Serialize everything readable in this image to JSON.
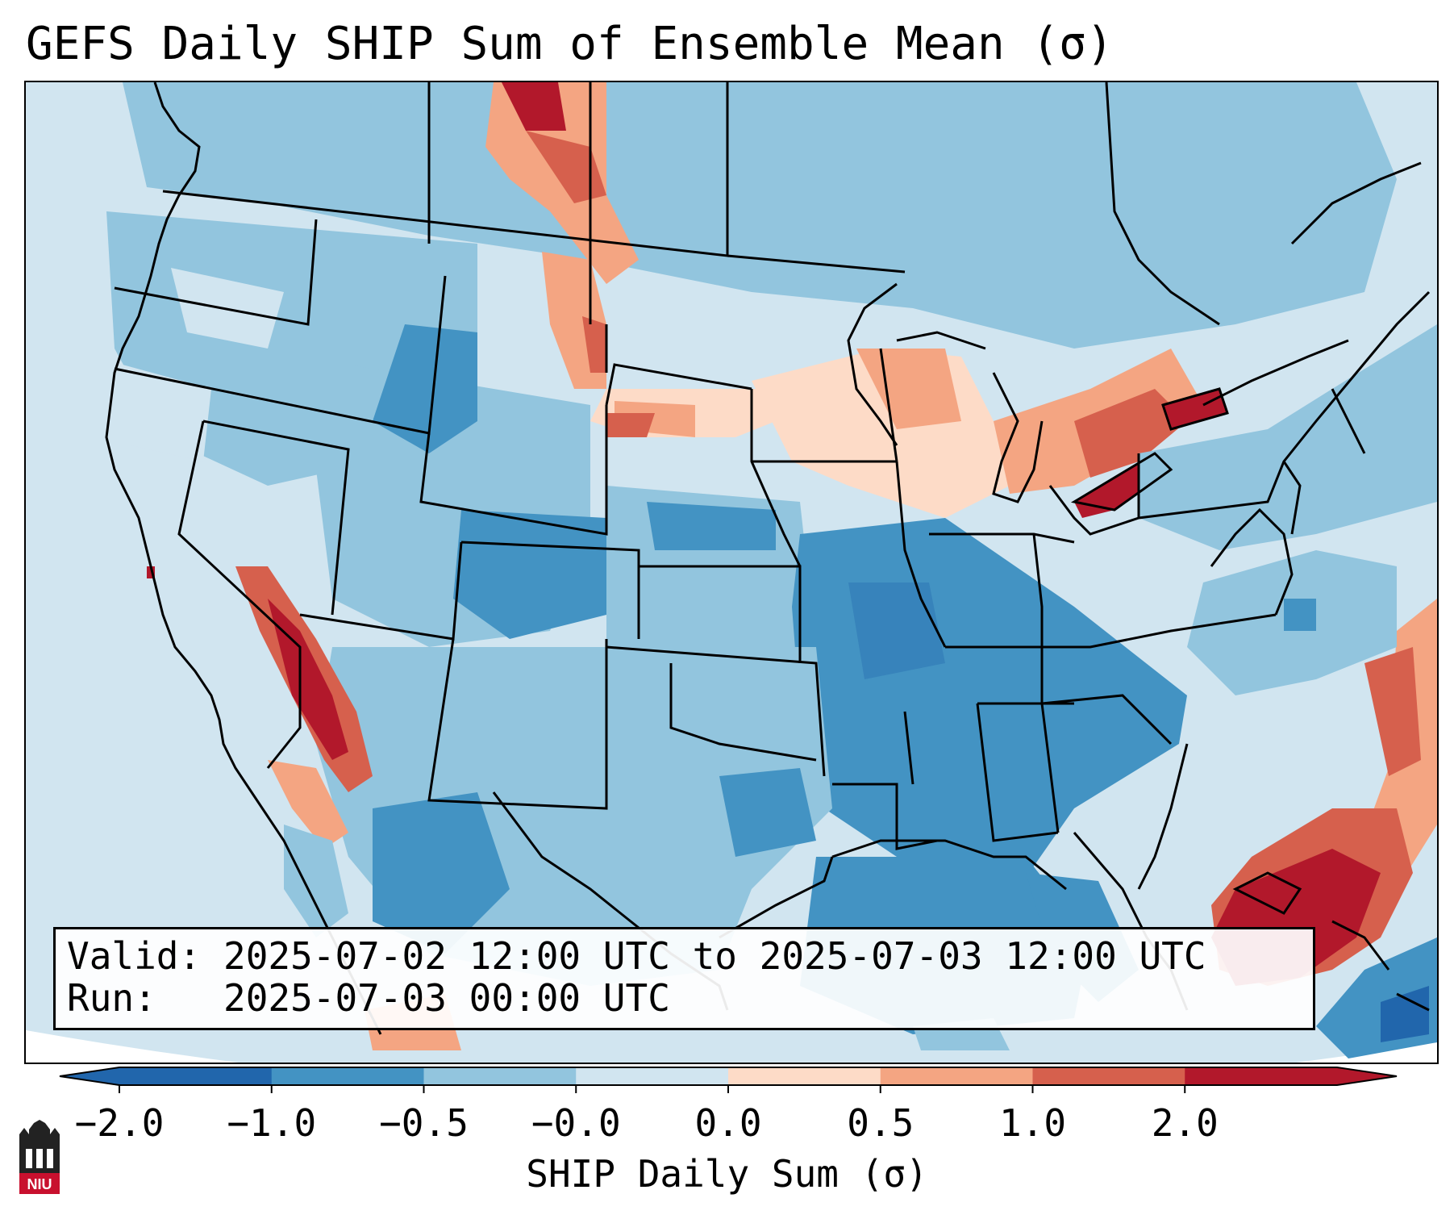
{
  "title": "GEFS Daily SHIP Sum of Ensemble Mean (σ)",
  "info": {
    "valid_label": "Valid:",
    "valid_value": "2025-07-02 12:00 UTC to 2025-07-03 12:00 UTC",
    "run_label": "Run:",
    "run_value": "2025-07-03 00:00 UTC"
  },
  "colorbar": {
    "label": "SHIP Daily Sum (σ)",
    "ticks": [
      "−2.0",
      "−1.0",
      "−0.5",
      "−0.0",
      "0.0",
      "0.5",
      "1.0",
      "2.0"
    ],
    "colors": [
      "#2166ac",
      "#4393c3",
      "#92c5de",
      "#d1e5f0",
      "#fddbc7",
      "#f4a582",
      "#d6604d",
      "#b2182b"
    ],
    "extend": "both"
  },
  "logo": {
    "text": "NIU",
    "color": "#c8102e"
  }
}
